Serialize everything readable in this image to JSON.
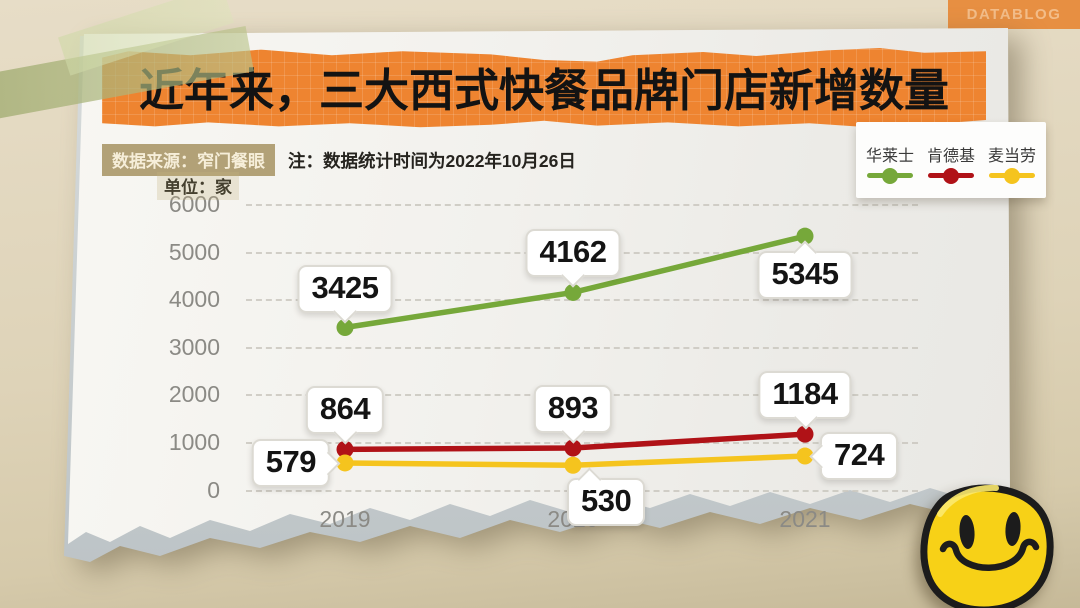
{
  "badge": {
    "label": "DATABLOG"
  },
  "header": {
    "title": "近年来，三大西式快餐品牌门店新增数量",
    "source": "数据来源：窄门餐眼",
    "note": "注：数据统计时间为2022年10月26日",
    "unit": "单位：家"
  },
  "colors": {
    "banner_orange": "#ee8430",
    "wall_beige": "#ded3b8",
    "wallace_green": "#76a83a",
    "kfc_red": "#b01217",
    "mcdonalds_yellow": "#f5c41e",
    "smiley_yellow": "#f7d117"
  },
  "legend": {
    "items": [
      {
        "label": "华莱士",
        "color": "#76a83a"
      },
      {
        "label": "肯德基",
        "color": "#b01217"
      },
      {
        "label": "麦当劳",
        "color": "#f5c41e"
      }
    ]
  },
  "chart_data": {
    "type": "line",
    "title": "近年来，三大西式快餐品牌门店新增数量",
    "categories": [
      "2019",
      "2020",
      "2021"
    ],
    "series": [
      {
        "name": "华莱士",
        "color": "#76a83a",
        "values": [
          3425,
          4162,
          5345
        ],
        "label_placement": [
          "above",
          "above",
          "below"
        ]
      },
      {
        "name": "肯德基",
        "color": "#b01217",
        "values": [
          864,
          893,
          1184
        ],
        "label_placement": [
          "above",
          "above",
          "above"
        ]
      },
      {
        "name": "麦当劳",
        "color": "#f5c41e",
        "values": [
          579,
          530,
          724
        ],
        "label_placement": [
          "left",
          "below-right",
          "right"
        ]
      }
    ],
    "ylabel": "单位：家",
    "yticks": [
      0,
      1000,
      2000,
      3000,
      4000,
      5000,
      6000
    ],
    "ylim": [
      0,
      6000
    ],
    "grid": "dashed",
    "legend_position": "top-right",
    "data_labels": true,
    "note": "数据统计时间为2022年10月26日",
    "source": "窄门餐眼"
  }
}
